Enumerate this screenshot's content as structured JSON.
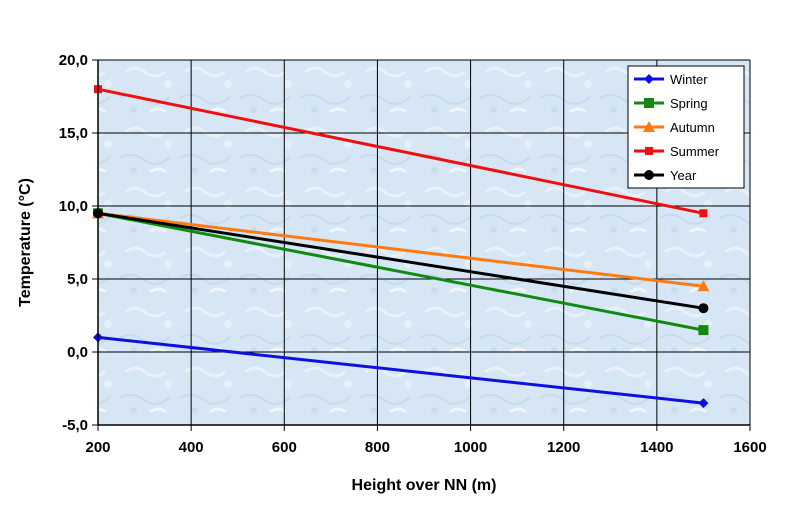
{
  "chart_data": {
    "type": "line",
    "xlabel": "Height over NN (m)",
    "ylabel": "Temperature (°C)",
    "xlim": [
      200,
      1600
    ],
    "ylim": [
      -5,
      20
    ],
    "x_ticks": [
      200,
      400,
      600,
      800,
      1000,
      1200,
      1400,
      1600
    ],
    "x_tick_labels": [
      "200",
      "400",
      "600",
      "800",
      "1000",
      "1200",
      "1400",
      "1600"
    ],
    "y_ticks": [
      -5,
      0,
      5,
      10,
      15,
      20
    ],
    "y_tick_labels": [
      "-5,0",
      "0,0",
      "5,0",
      "10,0",
      "15,0",
      "20,0"
    ],
    "grid": true,
    "legend_position": "top-right",
    "series": [
      {
        "name": "Winter",
        "color": "#1010dd",
        "marker": "diamond",
        "x": [
          200,
          1500
        ],
        "y": [
          1.0,
          -3.5
        ]
      },
      {
        "name": "Spring",
        "color": "#108a10",
        "marker": "square",
        "x": [
          200,
          1500
        ],
        "y": [
          9.5,
          1.5
        ]
      },
      {
        "name": "Autumn",
        "color": "#ff7a10",
        "marker": "triangle",
        "x": [
          200,
          1500
        ],
        "y": [
          9.5,
          4.5
        ]
      },
      {
        "name": "Summer",
        "color": "#ee1010",
        "marker": "square-small",
        "x": [
          200,
          1500
        ],
        "y": [
          18.0,
          9.5
        ]
      },
      {
        "name": "Year",
        "color": "#000000",
        "marker": "circle",
        "x": [
          200,
          1500
        ],
        "y": [
          9.5,
          3.0
        ]
      }
    ]
  }
}
